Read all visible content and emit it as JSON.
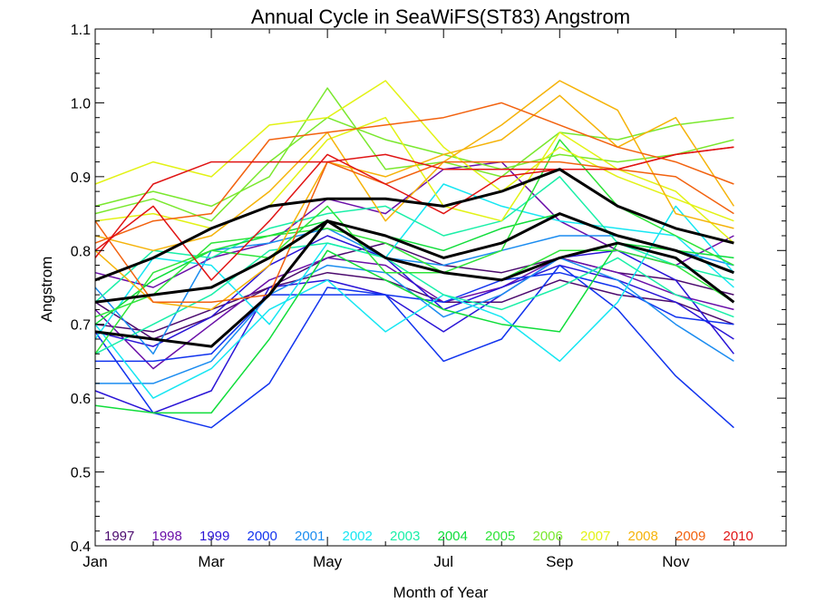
{
  "chart_data": {
    "type": "line",
    "title": "Annual Cycle in SeaWiFS(ST83) Angstrom",
    "xlabel": "Month of Year",
    "ylabel": "Angstrom",
    "xlim": [
      1,
      12
    ],
    "ylim": [
      0.4,
      1.1
    ],
    "xticks": [
      {
        "value": 1,
        "label": "Jan"
      },
      {
        "value": 3,
        "label": "Mar"
      },
      {
        "value": 5,
        "label": "May"
      },
      {
        "value": 7,
        "label": "Jul"
      },
      {
        "value": 9,
        "label": "Sep"
      },
      {
        "value": 11,
        "label": "Nov"
      }
    ],
    "yticks": [
      0.4,
      0.5,
      0.6,
      0.7,
      0.8,
      0.9,
      1.0,
      1.1
    ],
    "ytick_labels": [
      "0.4",
      "0.5",
      "0.6",
      "0.7",
      "0.8",
      "0.9",
      "1.0",
      "1.1"
    ],
    "grid": false,
    "legend_position": "bottom, inside plot",
    "series": [
      {
        "name": "1997",
        "color": "#4b0a6e",
        "lines": [
          [
            0.7,
            0.69,
            0.72,
            0.75,
            0.79,
            0.81,
            0.78,
            0.77,
            0.79,
            0.77,
            0.76,
            0.74
          ],
          [
            0.73,
            0.68,
            0.71,
            0.75,
            0.77,
            0.76,
            0.73,
            0.73,
            0.76,
            0.74,
            0.73,
            0.7
          ]
        ]
      },
      {
        "name": "1998",
        "color": "#6a0fa8",
        "lines": [
          [
            0.77,
            0.75,
            0.79,
            0.81,
            0.87,
            0.85,
            0.91,
            0.92,
            0.84,
            0.8,
            0.78,
            0.82
          ],
          [
            0.72,
            0.64,
            0.7,
            0.76,
            0.79,
            0.78,
            0.73,
            0.75,
            0.79,
            0.77,
            0.74,
            0.72
          ]
        ]
      },
      {
        "name": "1999",
        "color": "#2a14d6",
        "lines": [
          [
            0.61,
            0.58,
            0.61,
            0.75,
            0.76,
            0.74,
            0.69,
            0.74,
            0.79,
            0.8,
            0.76,
            0.66
          ],
          [
            0.69,
            0.67,
            0.71,
            0.78,
            0.82,
            0.79,
            0.72,
            0.75,
            0.78,
            0.76,
            0.73,
            0.68
          ]
        ]
      },
      {
        "name": "2000",
        "color": "#1133ee",
        "lines": [
          [
            0.69,
            0.58,
            0.56,
            0.62,
            0.75,
            0.74,
            0.65,
            0.68,
            0.78,
            0.72,
            0.63,
            0.56
          ],
          [
            0.65,
            0.65,
            0.66,
            0.74,
            0.74,
            0.74,
            0.73,
            0.76,
            0.77,
            0.75,
            0.71,
            0.7
          ]
        ]
      },
      {
        "name": "2001",
        "color": "#1b8cf0",
        "lines": [
          [
            0.75,
            0.66,
            0.8,
            0.81,
            0.83,
            0.79,
            0.78,
            0.8,
            0.82,
            0.82,
            0.8,
            0.78
          ],
          [
            0.62,
            0.62,
            0.65,
            0.74,
            0.78,
            0.77,
            0.71,
            0.74,
            0.79,
            0.76,
            0.7,
            0.65
          ]
        ]
      },
      {
        "name": "2002",
        "color": "#16e6f2",
        "lines": [
          [
            0.7,
            0.6,
            0.64,
            0.72,
            0.76,
            0.69,
            0.74,
            0.71,
            0.65,
            0.73,
            0.86,
            0.77
          ],
          [
            0.68,
            0.79,
            0.78,
            0.7,
            0.81,
            0.79,
            0.89,
            0.86,
            0.84,
            0.83,
            0.82,
            0.75
          ]
        ]
      },
      {
        "name": "2003",
        "color": "#1aefa8",
        "lines": [
          [
            0.73,
            0.8,
            0.79,
            0.83,
            0.85,
            0.86,
            0.82,
            0.84,
            0.9,
            0.81,
            0.78,
            0.76
          ],
          [
            0.66,
            0.7,
            0.74,
            0.8,
            0.81,
            0.79,
            0.74,
            0.72,
            0.75,
            0.79,
            0.74,
            0.71
          ]
        ]
      },
      {
        "name": "2004",
        "color": "#0fdd3a",
        "lines": [
          [
            0.59,
            0.58,
            0.58,
            0.68,
            0.8,
            0.76,
            0.72,
            0.7,
            0.69,
            0.81,
            0.8,
            0.79
          ],
          [
            0.7,
            0.76,
            0.8,
            0.82,
            0.84,
            0.82,
            0.8,
            0.83,
            0.85,
            0.82,
            0.8,
            0.77
          ]
        ]
      },
      {
        "name": "2005",
        "color": "#2fe43a",
        "lines": [
          [
            0.66,
            0.77,
            0.8,
            0.79,
            0.86,
            0.77,
            0.77,
            0.8,
            0.95,
            0.86,
            0.82,
            0.78
          ],
          [
            0.71,
            0.74,
            0.81,
            0.82,
            0.83,
            0.81,
            0.77,
            0.76,
            0.8,
            0.8,
            0.78,
            0.73
          ]
        ]
      },
      {
        "name": "2006",
        "color": "#7ae82e",
        "lines": [
          [
            0.86,
            0.88,
            0.86,
            0.9,
            1.02,
            0.91,
            0.92,
            0.9,
            0.96,
            0.95,
            0.97,
            0.98
          ],
          [
            0.85,
            0.87,
            0.84,
            0.92,
            0.98,
            0.95,
            0.93,
            0.91,
            0.93,
            0.92,
            0.93,
            0.95
          ]
        ]
      },
      {
        "name": "2007",
        "color": "#e2f215",
        "lines": [
          [
            0.89,
            0.92,
            0.9,
            0.97,
            0.98,
            1.03,
            0.94,
            0.88,
            0.94,
            0.9,
            0.87,
            0.84
          ],
          [
            0.84,
            0.85,
            0.83,
            0.86,
            0.95,
            0.98,
            0.86,
            0.84,
            0.96,
            0.91,
            0.88,
            0.81
          ]
        ]
      },
      {
        "name": "2008",
        "color": "#f5b30a",
        "lines": [
          [
            0.82,
            0.8,
            0.82,
            0.88,
            0.96,
            0.84,
            0.92,
            0.97,
            1.03,
            0.99,
            0.85,
            0.83
          ],
          [
            0.8,
            0.73,
            0.72,
            0.78,
            0.92,
            0.9,
            0.93,
            0.95,
            1.01,
            0.94,
            0.98,
            0.86
          ]
        ]
      },
      {
        "name": "2009",
        "color": "#f2620f",
        "lines": [
          [
            0.81,
            0.84,
            0.85,
            0.95,
            0.96,
            0.97,
            0.98,
            1.0,
            0.97,
            0.94,
            0.92,
            0.89
          ],
          [
            0.84,
            0.73,
            0.73,
            0.74,
            0.92,
            0.89,
            0.92,
            0.92,
            0.92,
            0.91,
            0.9,
            0.85
          ]
        ]
      },
      {
        "name": "2010",
        "color": "#e01414",
        "lines": [
          [
            0.79,
            0.89,
            0.92,
            0.92,
            0.92,
            0.93,
            0.91,
            0.91,
            0.91,
            0.91,
            0.93,
            0.94
          ],
          [
            0.8,
            0.86,
            0.76,
            0.84,
            0.93,
            0.89,
            0.85,
            0.9,
            0.91,
            0.91,
            0.93,
            0.94
          ]
        ]
      },
      {
        "name": "",
        "color": "#000000",
        "width": 3,
        "lines": [
          [
            0.76,
            0.79,
            0.83,
            0.86,
            0.87,
            0.87,
            0.86,
            0.88,
            0.91,
            0.86,
            0.83,
            0.81
          ],
          [
            0.73,
            0.74,
            0.75,
            0.79,
            0.84,
            0.82,
            0.79,
            0.81,
            0.85,
            0.82,
            0.8,
            0.77
          ],
          [
            0.69,
            0.68,
            0.67,
            0.74,
            0.84,
            0.79,
            0.77,
            0.76,
            0.79,
            0.81,
            0.79,
            0.73
          ]
        ]
      }
    ]
  }
}
